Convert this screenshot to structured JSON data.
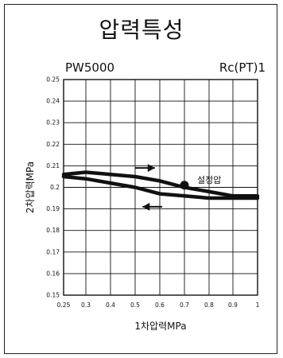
{
  "chart_data": {
    "type": "line",
    "title": "압력특성",
    "model": "PW5000",
    "port": "Rc(PT)1",
    "xlabel": "1차압력MPa",
    "ylabel": "2차압력MPa",
    "xlim": [
      0.25,
      1.0
    ],
    "ylim": [
      0.15,
      0.25
    ],
    "x_ticks": [
      "0.25",
      "0.3",
      "0.4",
      "0.5",
      "0.6",
      "0.7",
      "0.8",
      "0.9",
      "1"
    ],
    "y_ticks": [
      "0.25",
      "0.24",
      "0.23",
      "0.22",
      "0.21",
      "0.2",
      "0.19",
      "0.18",
      "0.17",
      "0.16",
      "0.15"
    ],
    "grid": true,
    "series": [
      {
        "x": [
          0.25,
          0.3,
          0.4,
          0.5,
          0.6,
          0.7,
          0.8,
          0.9,
          1.0
        ],
        "y": [
          0.206,
          0.207,
          0.206,
          0.205,
          0.203,
          0.2,
          0.198,
          0.196,
          0.196
        ]
      },
      {
        "x": [
          0.25,
          0.3,
          0.4,
          0.5,
          0.6,
          0.7,
          0.8,
          0.9,
          1.0
        ],
        "y": [
          0.205,
          0.204,
          0.202,
          0.2,
          0.197,
          0.196,
          0.195,
          0.195,
          0.195
        ]
      }
    ],
    "set_point": {
      "x": 0.7,
      "y": 0.201,
      "label": "설정압"
    },
    "arrows": [
      {
        "x_from": 0.5,
        "x_to": 0.58,
        "y": 0.209,
        "direction": "right"
      },
      {
        "x_from": 0.61,
        "x_to": 0.53,
        "y": 0.191,
        "direction": "left"
      }
    ]
  }
}
